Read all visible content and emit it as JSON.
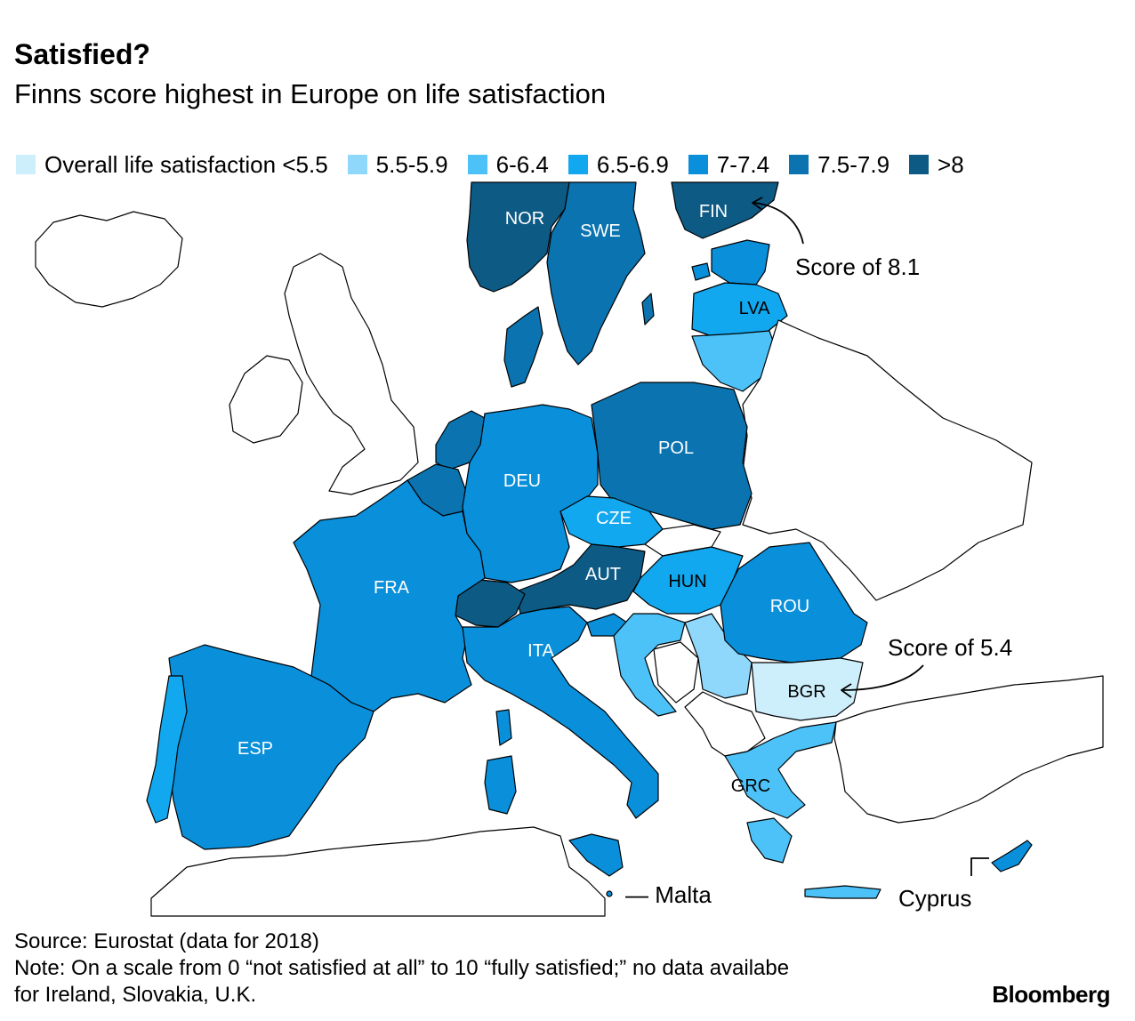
{
  "title": "Satisfied?",
  "subtitle": "Finns score highest in Europe on life satisfaction",
  "legend": {
    "items": [
      {
        "label": "Overall life satisfaction <5.5",
        "color": "#cdeefb"
      },
      {
        "label": "5.5-5.9",
        "color": "#8fd8fb"
      },
      {
        "label": "6-6.4",
        "color": "#4cc2f8"
      },
      {
        "label": "6.5-6.9",
        "color": "#12a8ef"
      },
      {
        "label": "7-7.4",
        "color": "#0a8fda"
      },
      {
        "label": "7.5-7.9",
        "color": "#0b74b0"
      },
      {
        "label": ">8",
        "color": "#0d5a84"
      }
    ]
  },
  "countries": {
    "NOR": "NOR",
    "SWE": "SWE",
    "FIN": "FIN",
    "LVA": "LVA",
    "POL": "POL",
    "DEU": "DEU",
    "CZE": "CZE",
    "AUT": "AUT",
    "FRA": "FRA",
    "HUN": "HUN",
    "ROU": "ROU",
    "ITA": "ITA",
    "BGR": "BGR",
    "ESP": "ESP",
    "GRC": "GRC"
  },
  "annotations": {
    "fin_score": "Score of 8.1",
    "bgr_score": "Score of 5.4",
    "malta": "— Malta",
    "cyprus": "Cyprus"
  },
  "footer": {
    "source": "Source: Eurostat (data for 2018)",
    "note_line1": "Note: On a scale from 0 “not satisfied at all” to 10 “fully satisfied;” no data availabe",
    "note_line2": "for Ireland, Slovakia, U.K."
  },
  "brand": "Bloomberg",
  "colors": {
    "no_data": "#ffffff",
    "border": "#000000"
  }
}
